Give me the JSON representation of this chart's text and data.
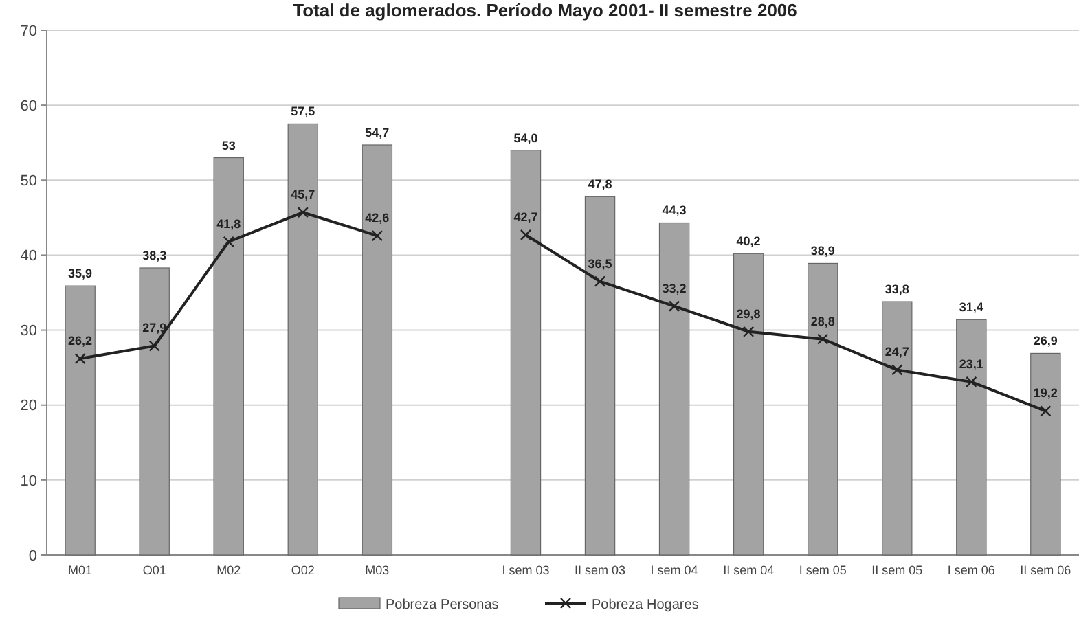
{
  "chart_data": {
    "type": "bar",
    "title": "Total de aglomerados. Período Mayo 2001- II semestre 2006",
    "categories": [
      "M01",
      "O01",
      "M02",
      "O02",
      "M03",
      null,
      "I sem 03",
      "II sem 03",
      "I sem 04",
      "II sem 04",
      "I sem 05",
      "II sem 05",
      "I sem 06",
      "II sem 06"
    ],
    "series": [
      {
        "name": "Pobreza Personas",
        "color": "#a3a3a3",
        "values": [
          35.9,
          38.3,
          53,
          57.5,
          54.7,
          null,
          54.0,
          47.8,
          44.3,
          40.2,
          38.9,
          33.8,
          31.4,
          26.9
        ],
        "value_labels": [
          "35,9",
          "38,3",
          "53",
          "57,5",
          "54,7",
          null,
          "54,0",
          "47,8",
          "44,3",
          "40,2",
          "38,9",
          "33,8",
          "31,4",
          "26,9"
        ]
      },
      {
        "name": "Pobreza Hogares",
        "type": "line",
        "color": "#222222",
        "marker": "cross",
        "values": [
          26.2,
          27.9,
          41.8,
          45.7,
          42.6,
          null,
          42.7,
          36.5,
          33.2,
          29.8,
          28.8,
          24.7,
          23.1,
          19.2
        ],
        "value_labels": [
          "26,2",
          "27,9",
          "41,8",
          "45,7",
          "42,6",
          null,
          "42,7",
          "36,5",
          "33,2",
          "29,8",
          "28,8",
          "24,7",
          "23,1",
          "19,2"
        ]
      }
    ],
    "ylim": [
      0,
      70
    ],
    "yticks": [
      0,
      10,
      20,
      30,
      40,
      50,
      60,
      70
    ],
    "grid": "y",
    "legend": "bottom"
  }
}
